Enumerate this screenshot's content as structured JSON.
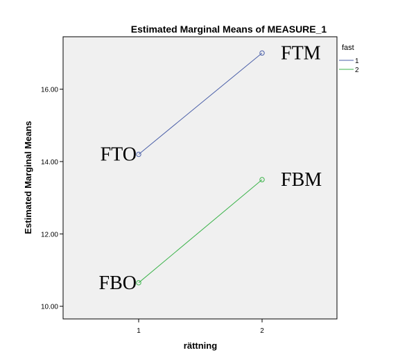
{
  "chart_data": {
    "type": "line",
    "title": "Estimated Marginal Means of MEASURE_1",
    "xlabel": "rättning",
    "ylabel": "Estimated Marginal Means",
    "categories": [
      "1",
      "2"
    ],
    "yticks": [
      "10.00",
      "12.00",
      "14.00",
      "16.00"
    ],
    "ylim": [
      9.65,
      17.45
    ],
    "grid": false,
    "legend": {
      "title": "fast",
      "placement": "top-right-outside"
    },
    "series": [
      {
        "name": "1",
        "values": [
          14.2,
          17.0
        ],
        "color": "#4a5fa8"
      },
      {
        "name": "2",
        "values": [
          10.65,
          13.5
        ],
        "color": "#3bb34a"
      }
    ],
    "annotations": [
      {
        "text": "FTO",
        "series": 0,
        "point": 0
      },
      {
        "text": "FTM",
        "series": 0,
        "point": 1
      },
      {
        "text": "FBO",
        "series": 1,
        "point": 0
      },
      {
        "text": "FBM",
        "series": 1,
        "point": 1
      }
    ]
  }
}
